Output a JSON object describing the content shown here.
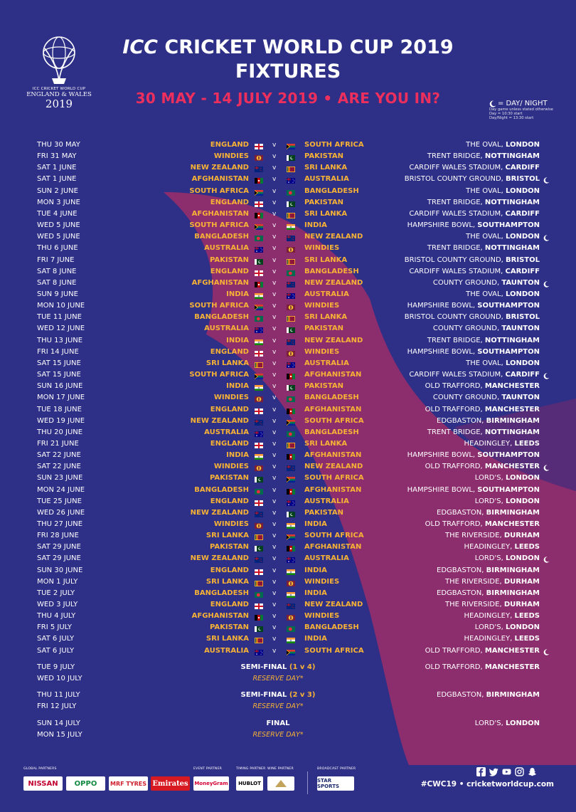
{
  "header": {
    "logo_line1": "ICC CRICKET WORLD CUP",
    "logo_line2": "ENGLAND & WALES",
    "logo_line3": "2019",
    "title_icc": "ICC",
    "title_rest": " CRICKET WORLD CUP 2019",
    "title_line2": "FIXTURES",
    "subtitle": "30 MAY - 14 JULY 2019 • ARE YOU IN?"
  },
  "legend": {
    "daynight": "= DAY/ NIGHT",
    "note1": "Day game unless stated otherwise",
    "note2": "Day = 10:30 start",
    "note3": "Day/Night = 13:30 start"
  },
  "colors": {
    "background": "#2e2f86",
    "swoosh": "#8c2d6e",
    "team": "#f7b236",
    "accent": "#ec2f5c"
  },
  "fixtures": [
    {
      "date": "THU 30 MAY",
      "t1": "ENGLAND",
      "t2": "SOUTH AFRICA",
      "ground": "THE OVAL, ",
      "city": "LONDON",
      "dn": false
    },
    {
      "date": "FRI 31 MAY",
      "t1": "WINDIES",
      "t2": "PAKISTAN",
      "ground": "TRENT BRIDGE, ",
      "city": "NOTTINGHAM",
      "dn": false
    },
    {
      "date": "SAT 1 JUNE",
      "t1": "NEW ZEALAND",
      "t2": "SRI LANKA",
      "ground": "CARDIFF WALES STADIUM, ",
      "city": "CARDIFF",
      "dn": false
    },
    {
      "date": "SAT 1 JUNE",
      "t1": "AFGHANISTAN",
      "t2": "AUSTRALIA",
      "ground": "BRISTOL COUNTY GROUND, ",
      "city": "BRISTOL",
      "dn": true
    },
    {
      "date": "SUN 2 JUNE",
      "t1": "SOUTH AFRICA",
      "t2": "BANGLADESH",
      "ground": "THE OVAL, ",
      "city": "LONDON",
      "dn": false
    },
    {
      "date": "MON 3 JUNE",
      "t1": "ENGLAND",
      "t2": "PAKISTAN",
      "ground": "TRENT BRIDGE, ",
      "city": "NOTTINGHAM",
      "dn": false
    },
    {
      "date": "TUE 4 JUNE",
      "t1": "AFGHANISTAN",
      "t2": "SRI LANKA",
      "ground": "CARDIFF WALES STADIUM, ",
      "city": "CARDIFF",
      "dn": false
    },
    {
      "date": "WED 5 JUNE",
      "t1": "SOUTH AFRICA",
      "t2": "INDIA",
      "ground": "HAMPSHIRE BOWL, ",
      "city": "SOUTHAMPTON",
      "dn": false
    },
    {
      "date": "WED 5 JUNE",
      "t1": "BANGLADESH",
      "t2": "NEW ZEALAND",
      "ground": "THE OVAL, ",
      "city": "LONDON",
      "dn": true
    },
    {
      "date": "THU 6 JUNE",
      "t1": "AUSTRALIA",
      "t2": "WINDIES",
      "ground": "TRENT BRIDGE, ",
      "city": "NOTTINGHAM",
      "dn": false
    },
    {
      "date": "FRI 7 JUNE",
      "t1": "PAKISTAN",
      "t2": "SRI LANKA",
      "ground": "BRISTOL COUNTY GROUND, ",
      "city": "BRISTOL",
      "dn": false
    },
    {
      "date": "SAT 8 JUNE",
      "t1": "ENGLAND",
      "t2": "BANGLADESH",
      "ground": "CARDIFF WALES STADIUM, ",
      "city": "CARDIFF",
      "dn": false
    },
    {
      "date": "SAT 8 JUNE",
      "t1": "AFGHANISTAN",
      "t2": "NEW ZEALAND",
      "ground": "COUNTY GROUND, ",
      "city": "TAUNTON",
      "dn": true
    },
    {
      "date": "SUN 9 JUNE",
      "t1": "INDIA",
      "t2": "AUSTRALIA",
      "ground": "THE OVAL, ",
      "city": "LONDON",
      "dn": false
    },
    {
      "date": "MON 10 JUNE",
      "t1": "SOUTH AFRICA",
      "t2": "WINDIES",
      "ground": "HAMPSHIRE BOWL, ",
      "city": "SOUTHAMPTON",
      "dn": false
    },
    {
      "date": "TUE 11 JUNE",
      "t1": "BANGLADESH",
      "t2": "SRI LANKA",
      "ground": "BRISTOL COUNTY GROUND, ",
      "city": "BRISTOL",
      "dn": false
    },
    {
      "date": "WED 12 JUNE",
      "t1": "AUSTRALIA",
      "t2": "PAKISTAN",
      "ground": "COUNTY GROUND, ",
      "city": "TAUNTON",
      "dn": false
    },
    {
      "date": "THU 13 JUNE",
      "t1": "INDIA",
      "t2": "NEW ZEALAND",
      "ground": "TRENT BRIDGE, ",
      "city": "NOTTINGHAM",
      "dn": false
    },
    {
      "date": "FRI 14 JUNE",
      "t1": "ENGLAND",
      "t2": "WINDIES",
      "ground": "HAMPSHIRE BOWL, ",
      "city": "SOUTHAMPTON",
      "dn": false
    },
    {
      "date": "SAT 15 JUNE",
      "t1": "SRI LANKA",
      "t2": "AUSTRALIA",
      "ground": "THE OVAL, ",
      "city": "LONDON",
      "dn": false
    },
    {
      "date": "SAT 15 JUNE",
      "t1": "SOUTH AFRICA",
      "t2": "AFGHANISTAN",
      "ground": "CARDIFF WALES STADIUM, ",
      "city": "CARDIFF",
      "dn": true
    },
    {
      "date": "SUN 16 JUNE",
      "t1": "INDIA",
      "t2": "PAKISTAN",
      "ground": "OLD TRAFFORD, ",
      "city": "MANCHESTER",
      "dn": false
    },
    {
      "date": "MON 17 JUNE",
      "t1": "WINDIES",
      "t2": "BANGLADESH",
      "ground": "COUNTY GROUND, ",
      "city": "TAUNTON",
      "dn": false
    },
    {
      "date": "TUE 18 JUNE",
      "t1": "ENGLAND",
      "t2": "AFGHANISTAN",
      "ground": "OLD TRAFFORD, ",
      "city": "MANCHESTER",
      "dn": false
    },
    {
      "date": "WED 19 JUNE",
      "t1": "NEW ZEALAND",
      "t2": "SOUTH AFRICA",
      "ground": "EDGBASTON, ",
      "city": "BIRMINGHAM",
      "dn": false
    },
    {
      "date": "THU 20 JUNE",
      "t1": "AUSTRALIA",
      "t2": "BANGLADESH",
      "ground": "TRENT BRIDGE, ",
      "city": "NOTTINGHAM",
      "dn": false
    },
    {
      "date": "FRI 21 JUNE",
      "t1": "ENGLAND",
      "t2": "SRI LANKA",
      "ground": "HEADINGLEY, ",
      "city": "LEEDS",
      "dn": false
    },
    {
      "date": "SAT 22 JUNE",
      "t1": "INDIA",
      "t2": "AFGHANISTAN",
      "ground": "HAMPSHIRE BOWL, ",
      "city": "SOUTHAMPTON",
      "dn": false
    },
    {
      "date": "SAT 22 JUNE",
      "t1": "WINDIES",
      "t2": "NEW ZEALAND",
      "ground": "OLD TRAFFORD, ",
      "city": "MANCHESTER",
      "dn": true
    },
    {
      "date": "SUN 23 JUNE",
      "t1": "PAKISTAN",
      "t2": "SOUTH AFRICA",
      "ground": "LORD'S, ",
      "city": "LONDON",
      "dn": false
    },
    {
      "date": "MON 24 JUNE",
      "t1": "BANGLADESH",
      "t2": "AFGHANISTAN",
      "ground": "HAMPSHIRE BOWL, ",
      "city": "SOUTHAMPTON",
      "dn": false
    },
    {
      "date": "TUE 25 JUNE",
      "t1": "ENGLAND",
      "t2": "AUSTRALIA",
      "ground": "LORD'S, ",
      "city": "LONDON",
      "dn": false
    },
    {
      "date": "WED 26 JUNE",
      "t1": "NEW ZEALAND",
      "t2": "PAKISTAN",
      "ground": "EDGBASTON, ",
      "city": "BIRMINGHAM",
      "dn": false
    },
    {
      "date": "THU 27 JUNE",
      "t1": "WINDIES",
      "t2": "INDIA",
      "ground": "OLD TRAFFORD, ",
      "city": "MANCHESTER",
      "dn": false
    },
    {
      "date": "FRI 28 JUNE",
      "t1": "SRI LANKA",
      "t2": "SOUTH AFRICA",
      "ground": "THE RIVERSIDE, ",
      "city": "DURHAM",
      "dn": false
    },
    {
      "date": "SAT 29 JUNE",
      "t1": "PAKISTAN",
      "t2": "AFGHANISTAN",
      "ground": "HEADINGLEY, ",
      "city": "LEEDS",
      "dn": false
    },
    {
      "date": "SAT 29 JUNE",
      "t1": "NEW ZEALAND",
      "t2": "AUSTRALIA",
      "ground": "LORD'S, ",
      "city": "LONDON",
      "dn": true
    },
    {
      "date": "SUN 30 JUNE",
      "t1": "ENGLAND",
      "t2": "INDIA",
      "ground": "EDGBASTON, ",
      "city": "BIRMINGHAM",
      "dn": false
    },
    {
      "date": "MON 1 JULY",
      "t1": "SRI LANKA",
      "t2": "WINDIES",
      "ground": "THE RIVERSIDE, ",
      "city": "DURHAM",
      "dn": false
    },
    {
      "date": "TUE 2 JULY",
      "t1": "BANGLADESH",
      "t2": "INDIA",
      "ground": "EDGBASTON, ",
      "city": "BIRMINGHAM",
      "dn": false
    },
    {
      "date": "WED 3 JULY",
      "t1": "ENGLAND",
      "t2": "NEW ZEALAND",
      "ground": "THE RIVERSIDE, ",
      "city": "DURHAM",
      "dn": false
    },
    {
      "date": "THU 4 JULY",
      "t1": "AFGHANISTAN",
      "t2": "WINDIES",
      "ground": "HEADINGLEY, ",
      "city": "LEEDS",
      "dn": false
    },
    {
      "date": "FRI 5 JULY",
      "t1": "PAKISTAN",
      "t2": "BANGLADESH",
      "ground": "LORD'S, ",
      "city": "LONDON",
      "dn": false
    },
    {
      "date": "SAT 6 JULY",
      "t1": "SRI LANKA",
      "t2": "INDIA",
      "ground": "HEADINGLEY, ",
      "city": "LEEDS",
      "dn": false
    },
    {
      "date": "SAT 6 JULY",
      "t1": "AUSTRALIA",
      "t2": "SOUTH AFRICA",
      "ground": "OLD TRAFFORD, ",
      "city": "MANCHESTER",
      "dn": true
    }
  ],
  "knockouts": [
    {
      "date": "TUE 9 JULY",
      "stage": "SEMI-FINAL ",
      "pair": "(1 v 4)",
      "ground": "OLD TRAFFORD, ",
      "city": "MANCHESTER"
    },
    {
      "date": "WED 10 JULY",
      "reserve": "RESERVE DAY*"
    },
    {
      "date": "THU 11 JULY",
      "stage": "SEMI-FINAL ",
      "pair": "(2 v 3)",
      "ground": "EDGBASTON, ",
      "city": "BIRMINGHAM"
    },
    {
      "date": "FRI 12 JULY",
      "reserve": "RESERVE DAY*"
    },
    {
      "date": "SUN 14 JULY",
      "stage": "FINAL",
      "pair": "",
      "ground": "LORD'S, ",
      "city": "LONDON"
    },
    {
      "date": "MON 15 JULY",
      "reserve": "RESERVE DAY*"
    }
  ],
  "footer": {
    "global_label": "GLOBAL PARTNERS",
    "event_label": "EVENT PARTNER",
    "timing_label": "TIMING PARTNER",
    "wine_label": "WINE PARTNER",
    "broadcast_label": "BROADCAST PARTNER",
    "partners": [
      "NISSAN",
      "OPPO",
      "MRF TYRES",
      "Emirates",
      "MoneyGram",
      "HUBLOT",
      "STAR SPORTS"
    ],
    "social_icons": [
      "facebook-icon",
      "twitter-icon",
      "youtube-icon",
      "instagram-icon",
      "snapchat-icon"
    ],
    "hashtag": "#CWC19",
    "dot": "•",
    "website": "cricketworldcup.com"
  }
}
